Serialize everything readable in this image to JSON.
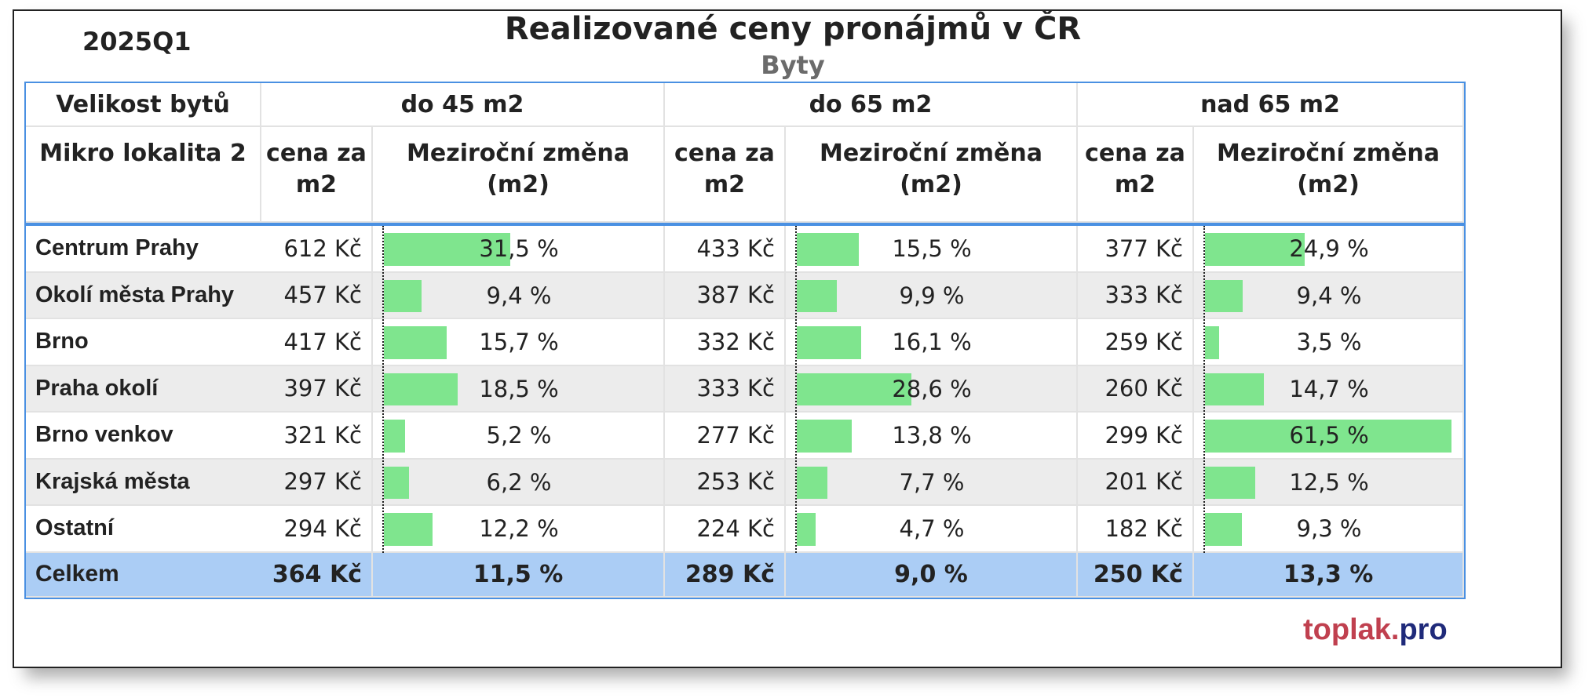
{
  "period": "2025Q1",
  "title": "Realizované ceny pronájmů v ČR",
  "subtitle": "Byty",
  "brand": {
    "part1": "toplak.",
    "part2": "pro",
    "color1": "#c0404f",
    "color2": "#1f2a7a"
  },
  "colors": {
    "bar": "#7fe58e",
    "total_row": "#abcdf5",
    "alt_row": "#ececec",
    "border": "#4a90e2"
  },
  "headers": {
    "size_label": "Velikost bytů",
    "location_label": "Mikro lokalita 2",
    "groups": [
      "do 45 m2",
      "do 65 m2",
      "nad 65 m2"
    ],
    "price_label": "cena za m2",
    "change_label": "Meziroční změna (m2)"
  },
  "chart_data": {
    "type": "table",
    "title": "Realizované ceny pronájmů v ČR",
    "subtitle": "Byty",
    "period": "2025Q1",
    "series": [
      {
        "name": "do 45 m2",
        "prices": [
          "612 Kč",
          "457 Kč",
          "417 Kč",
          "397 Kč",
          "321 Kč",
          "297 Kč",
          "294 Kč"
        ],
        "changes": [
          31.5,
          9.4,
          15.7,
          18.5,
          5.2,
          6.2,
          12.2
        ],
        "change_labels": [
          "31,5 %",
          "9,4 %",
          "15,7 %",
          "18,5 %",
          "5,2 %",
          "6,2 %",
          "12,2 %"
        ]
      },
      {
        "name": "do 65 m2",
        "prices": [
          "433 Kč",
          "387 Kč",
          "332 Kč",
          "333 Kč",
          "277 Kč",
          "253 Kč",
          "224 Kč"
        ],
        "changes": [
          15.5,
          9.9,
          16.1,
          28.6,
          13.8,
          7.7,
          4.7
        ],
        "change_labels": [
          "15,5 %",
          "9,9 %",
          "16,1 %",
          "28,6 %",
          "13,8 %",
          "7,7 %",
          "4,7 %"
        ]
      },
      {
        "name": "nad 65 m2",
        "prices": [
          "377 Kč",
          "333 Kč",
          "259 Kč",
          "260 Kč",
          "299 Kč",
          "201 Kč",
          "182 Kč"
        ],
        "changes": [
          24.9,
          9.4,
          3.5,
          14.7,
          61.5,
          12.5,
          9.3
        ],
        "change_labels": [
          "24,9 %",
          "9,4 %",
          "3,5 %",
          "14,7 %",
          "61,5 %",
          "12,5 %",
          "9,3 %"
        ]
      }
    ],
    "locations": [
      "Centrum Prahy",
      "Okolí města Prahy",
      "Brno",
      "Praha okolí",
      "Brno venkov",
      "Krajská města",
      "Ostatní"
    ],
    "total": {
      "label": "Celkem",
      "prices": [
        "364 Kč",
        "289 Kč",
        "250 Kč"
      ],
      "changes": [
        "11,5 %",
        "9,0 %",
        "13,3 %"
      ]
    }
  }
}
